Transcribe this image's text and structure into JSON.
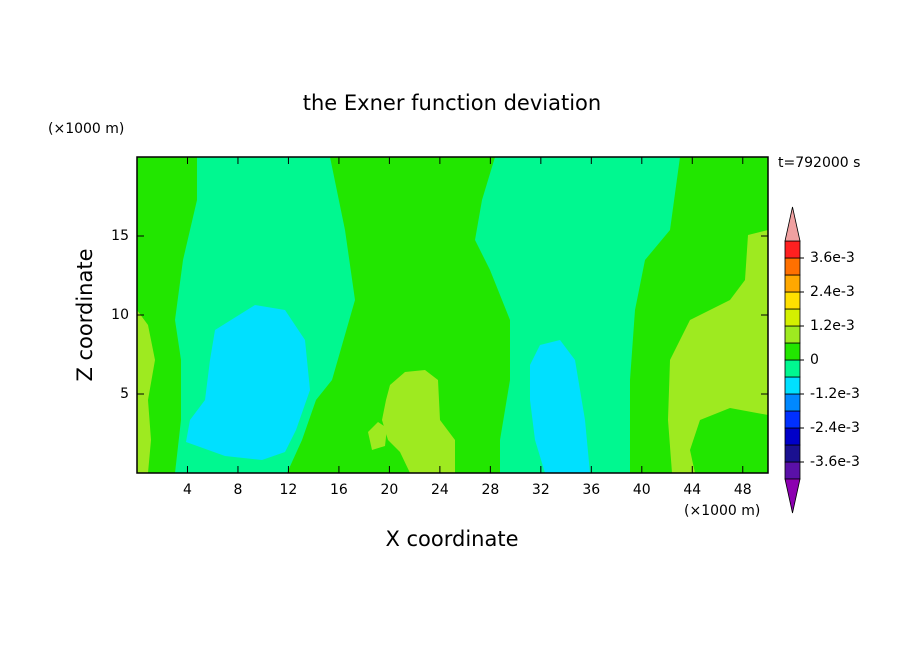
{
  "chart_data": {
    "type": "contour",
    "title": "the Exner function deviation",
    "time_label": "t=792000 s",
    "xlabel": "X coordinate",
    "ylabel": "Z coordinate",
    "x_unit": "(×1000 m)",
    "y_unit": "(×1000 m)",
    "xlim": [
      0,
      50
    ],
    "ylim": [
      0,
      20
    ],
    "xticks": [
      4,
      8,
      12,
      16,
      20,
      24,
      28,
      32,
      36,
      40,
      44,
      48
    ],
    "yticks": [
      5,
      10,
      15
    ],
    "levels": [
      -0.0042,
      -0.0036,
      -0.003,
      -0.0024,
      -0.0018,
      -0.0012,
      -0.0006,
      0,
      0.0006,
      0.0012,
      0.0018,
      0.0024,
      0.003,
      0.0036,
      0.0042
    ],
    "colors": [
      "#5a10a8",
      "#1a1090",
      "#0000c8",
      "#0030ff",
      "#0088ff",
      "#00e0ff",
      "#00f890",
      "#22e600",
      "#9eea20",
      "#d4f000",
      "#ffe000",
      "#ffa800",
      "#ff7000",
      "#ff2020"
    ],
    "over_color": "#f0a0a0",
    "under_color": "#8c00b0",
    "colorbar_ticks": [
      {
        "value": 0.0036,
        "label": "3.6e-3"
      },
      {
        "value": 0.0024,
        "label": "2.4e-3"
      },
      {
        "value": 0.0012,
        "label": "1.2e-3"
      },
      0,
      {
        "value": -0.0012,
        "label": "-1.2e-3"
      },
      {
        "value": -0.0024,
        "label": "-2.4e-3"
      },
      {
        "value": -0.0036,
        "label": "-3.6e-3"
      }
    ]
  }
}
